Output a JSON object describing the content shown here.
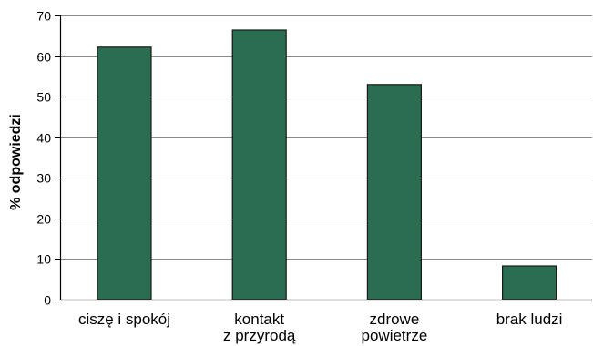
{
  "chart_data": {
    "type": "bar",
    "ylabel": "% odpowiedzi",
    "categories": [
      [
        "ciszę i spokój"
      ],
      [
        "kontakt",
        "z przyrodą"
      ],
      [
        "zdrowe",
        "powietrze"
      ],
      [
        "brak ludzi"
      ]
    ],
    "values": [
      62.2,
      66.4,
      53.0,
      8.3
    ],
    "ylim": [
      0,
      70
    ],
    "yticks": [
      0,
      10,
      20,
      30,
      40,
      50,
      60,
      70
    ],
    "grid": true,
    "colors": {
      "bar": "#2b6d50",
      "bar_border": "#1a1a1a",
      "grid": "#8a8a8a",
      "axis": "#000000"
    }
  }
}
